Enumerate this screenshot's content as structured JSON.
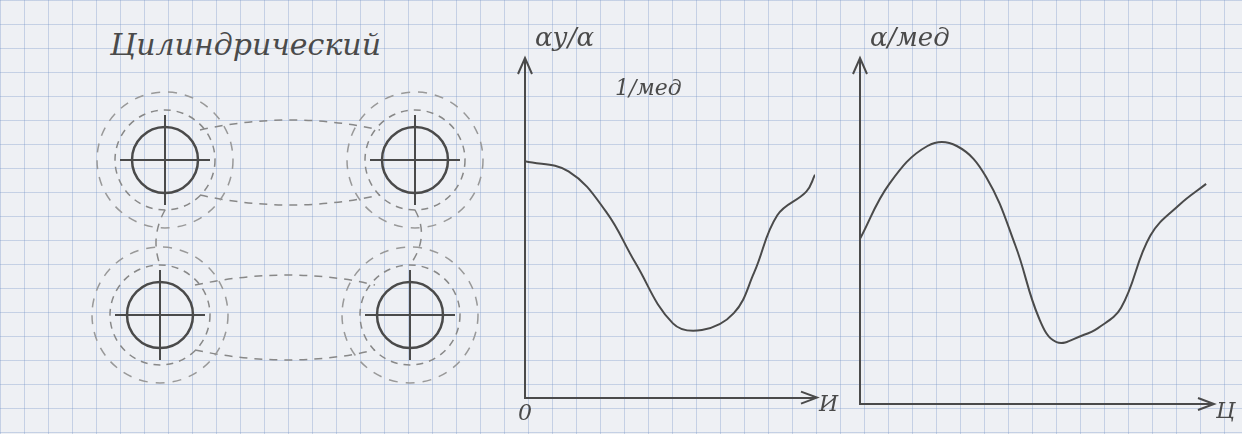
{
  "diagram": {
    "title": "Цилиндрический",
    "elements": 4
  },
  "chart_data": [
    {
      "type": "line",
      "y_label": "αу/α",
      "annotations": [
        "1/мед"
      ],
      "x_label": "И",
      "x": [
        0,
        1.5,
        2.8,
        3.8,
        5.1,
        6.1,
        7.2,
        7.9,
        8.7,
        9.7,
        10
      ],
      "values": [
        7.0,
        6.7,
        5.5,
        4.0,
        2.2,
        2.0,
        2.5,
        3.7,
        5.4,
        6.1,
        6.6
      ],
      "color": "#4a4a4a",
      "xlim": [
        0,
        10
      ],
      "ylim": [
        0,
        10
      ],
      "xticks": [
        0
      ],
      "tick_labels": "x",
      "grid": false
    },
    {
      "type": "line",
      "y_label": "α/мед",
      "annotations": [],
      "x_label": "Ц",
      "x": [
        0,
        1.0,
        2.3,
        3.3,
        4.3,
        5.3,
        6.1,
        6.7,
        7.6,
        8.1,
        8.9,
        9.9,
        10.9,
        11.8
      ],
      "values": [
        4.8,
        6.4,
        7.5,
        7.5,
        6.6,
        4.6,
        2.5,
        1.8,
        2.0,
        2.2,
        2.8,
        4.9,
        5.8,
        6.4
      ],
      "color": "#4a4a4a",
      "xlim": [
        0,
        12
      ],
      "ylim": [
        0,
        10
      ],
      "tick_labels": false,
      "grid": false
    }
  ]
}
